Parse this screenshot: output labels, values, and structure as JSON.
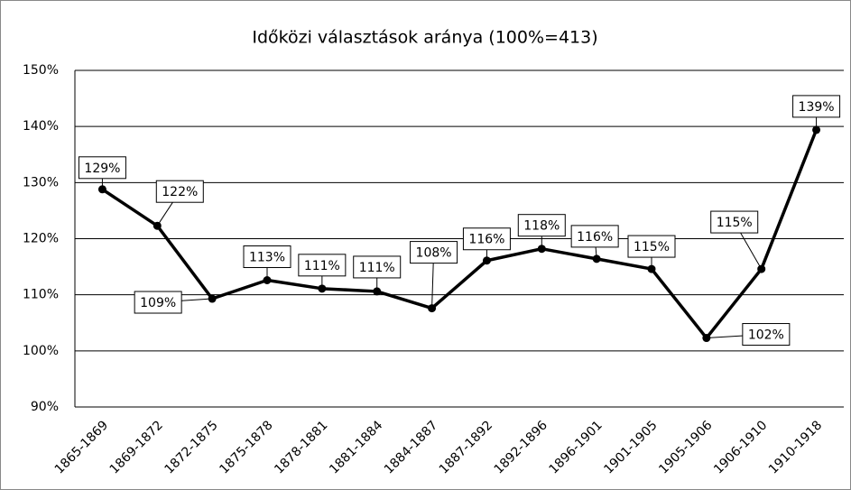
{
  "chart_data": {
    "type": "line",
    "title": "Időközi választások aránya (100%=413)",
    "categories": [
      "1865-1869",
      "1869-1872",
      "1872-1875",
      "1875-1878",
      "1878-1881",
      "1881-1884",
      "1884-1887",
      "1887-1892",
      "1892-1896",
      "1896-1901",
      "1901-1905",
      "1905-1906",
      "1906-1910",
      "1910-1918"
    ],
    "series": [
      {
        "name": "Időközi választások aránya",
        "color": "#000000",
        "values": [
          128.8,
          122.3,
          109.3,
          112.6,
          111.1,
          110.6,
          107.6,
          116.1,
          118.2,
          116.4,
          114.6,
          102.3,
          114.6,
          139.4
        ],
        "value_labels": [
          "129%",
          "122%",
          "109%",
          "113%",
          "111%",
          "111%",
          "108%",
          "116%",
          "118%",
          "116%",
          "115%",
          "102%",
          "115%",
          "139%"
        ]
      }
    ],
    "ylim": [
      90,
      150
    ],
    "yticks": [
      {
        "value": 90,
        "label": "90%"
      },
      {
        "value": 100,
        "label": "100%"
      },
      {
        "value": 110,
        "label": "110%"
      },
      {
        "value": 120,
        "label": "120%"
      },
      {
        "value": 130,
        "label": "130%"
      },
      {
        "value": 140,
        "label": "140%"
      },
      {
        "value": 150,
        "label": "150%"
      }
    ],
    "grid": true
  }
}
